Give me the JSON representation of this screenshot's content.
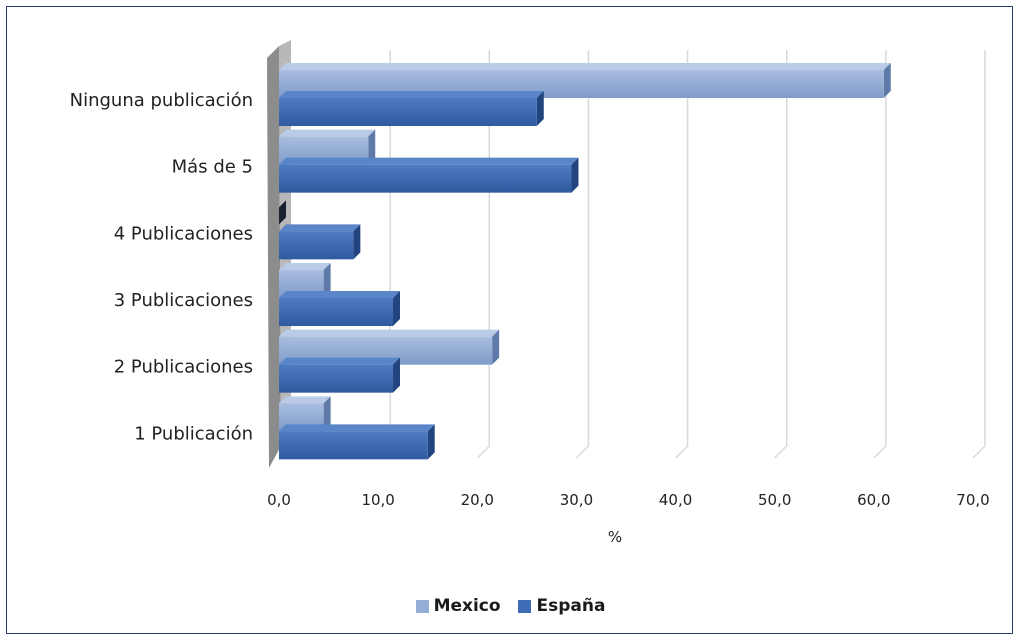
{
  "chart_data": {
    "type": "bar",
    "orientation": "horizontal",
    "categories": [
      "Ninguna publicación",
      "Más de 5",
      "4 Publicaciones",
      "3 Publicaciones",
      "2 Publicaciones",
      "1 Publicación"
    ],
    "series": [
      {
        "name": "Mexico",
        "color": "#95aed6",
        "values": [
          61.0,
          9.0,
          0.0,
          4.5,
          21.5,
          4.5
        ]
      },
      {
        "name": "España",
        "color": "#3f6db5",
        "values": [
          26.0,
          29.5,
          7.5,
          11.5,
          11.5,
          15.0
        ]
      }
    ],
    "x_ticks": [
      "0,0",
      "10,0",
      "20,0",
      "30,0",
      "40,0",
      "50,0",
      "60,0",
      "70,0"
    ],
    "xlim": [
      0,
      70
    ],
    "xlabel": "%",
    "grid": true,
    "legend": "bottom"
  }
}
